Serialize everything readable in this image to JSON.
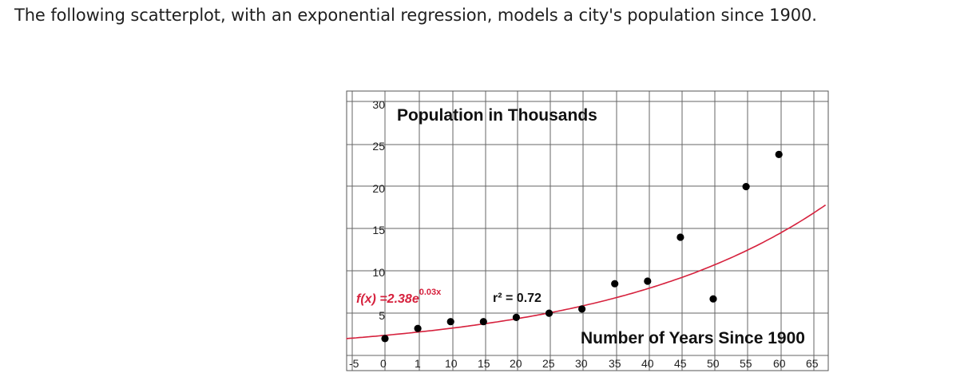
{
  "question": "The following scatterplot, with an exponential regression, models a city's population since 1900.",
  "colors": {
    "curve": "#d6213d",
    "equation": "#d6213d",
    "points": "#000000",
    "grid": "#777777"
  },
  "chart_data": {
    "type": "scatter",
    "title": "Population in Thousands",
    "xlabel": "Number of Years Since 1900",
    "ylabel": "",
    "xlim": [
      -5,
      67
    ],
    "ylim": [
      -1,
      31
    ],
    "grid": true,
    "x_ticks": [
      "-5",
      "0",
      "1",
      "10",
      "15",
      "20",
      "25",
      "30",
      "35",
      "40",
      "45",
      "50",
      "55",
      "60",
      "65"
    ],
    "y_ticks": [
      "5",
      "10",
      "15",
      "20",
      "25",
      "30"
    ],
    "points": [
      {
        "x": 0,
        "y": 2
      },
      {
        "x": 5,
        "y": 3.2
      },
      {
        "x": 10,
        "y": 4
      },
      {
        "x": 15,
        "y": 4
      },
      {
        "x": 20,
        "y": 4.5
      },
      {
        "x": 25,
        "y": 5
      },
      {
        "x": 30,
        "y": 5.5
      },
      {
        "x": 35,
        "y": 8.5
      },
      {
        "x": 40,
        "y": 8.8
      },
      {
        "x": 45,
        "y": 14
      },
      {
        "x": 50,
        "y": 6.7
      },
      {
        "x": 55,
        "y": 20
      },
      {
        "x": 60,
        "y": 23.8
      }
    ],
    "regression": {
      "type": "exponential",
      "a": 2.38,
      "b": 0.03,
      "equation_prefix": "f(x) =2.38e",
      "equation_exponent": "0.03x",
      "r2_label": "r² = 0.72"
    }
  }
}
